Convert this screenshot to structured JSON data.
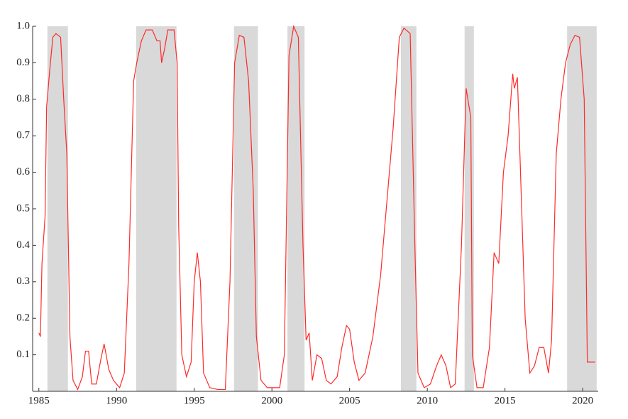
{
  "chart_data": {
    "type": "line",
    "x": [
      1985.0,
      1985.1,
      1985.2,
      1985.4,
      1985.5,
      1985.7,
      1985.9,
      1986.1,
      1986.4,
      1986.6,
      1986.8,
      1987.0,
      1987.2,
      1987.5,
      1987.8,
      1988.0,
      1988.2,
      1988.4,
      1988.7,
      1989.0,
      1989.2,
      1989.5,
      1989.8,
      1990.2,
      1990.5,
      1990.8,
      1991.1,
      1991.3,
      1991.6,
      1991.9,
      1992.3,
      1992.6,
      1992.8,
      1992.9,
      1993.1,
      1993.3,
      1993.7,
      1993.9,
      1994.0,
      1994.2,
      1994.5,
      1994.8,
      1995.0,
      1995.2,
      1995.4,
      1995.6,
      1996.0,
      1996.5,
      1997.0,
      1997.3,
      1997.6,
      1997.9,
      1998.2,
      1998.5,
      1998.8,
      1999.0,
      1999.3,
      1999.7,
      2000.1,
      2000.5,
      2000.8,
      2001.1,
      2001.4,
      2001.7,
      2002.0,
      2002.2,
      2002.4,
      2002.6,
      2002.9,
      2003.2,
      2003.5,
      2003.8,
      2004.2,
      2004.5,
      2004.8,
      2005.0,
      2005.3,
      2005.6,
      2006.0,
      2006.5,
      2007.0,
      2007.4,
      2007.8,
      2008.2,
      2008.5,
      2008.9,
      2009.2,
      2009.4,
      2009.8,
      2010.2,
      2010.6,
      2010.9,
      2011.2,
      2011.5,
      2011.8,
      2012.2,
      2012.5,
      2012.8,
      2012.9,
      2013.2,
      2013.6,
      2014.0,
      2014.3,
      2014.6,
      2014.9,
      2015.2,
      2015.5,
      2015.6,
      2015.8,
      2016.0,
      2016.3,
      2016.6,
      2016.9,
      2017.2,
      2017.5,
      2017.8,
      2018.0,
      2018.3,
      2018.6,
      2018.9,
      2019.2,
      2019.5,
      2019.8,
      2020.1,
      2020.3,
      2020.8
    ],
    "series": [
      {
        "color": "#ff2a2a",
        "values": [
          0.16,
          0.15,
          0.35,
          0.48,
          0.78,
          0.88,
          0.97,
          0.98,
          0.97,
          0.8,
          0.65,
          0.15,
          0.03,
          0.005,
          0.04,
          0.11,
          0.11,
          0.02,
          0.02,
          0.09,
          0.13,
          0.06,
          0.03,
          0.01,
          0.05,
          0.35,
          0.85,
          0.9,
          0.96,
          0.99,
          0.99,
          0.96,
          0.96,
          0.9,
          0.94,
          0.99,
          0.99,
          0.9,
          0.45,
          0.1,
          0.04,
          0.08,
          0.3,
          0.38,
          0.3,
          0.05,
          0.01,
          0.005,
          0.005,
          0.3,
          0.9,
          0.975,
          0.97,
          0.85,
          0.55,
          0.15,
          0.03,
          0.01,
          0.01,
          0.01,
          0.1,
          0.92,
          1.0,
          0.97,
          0.4,
          0.14,
          0.16,
          0.03,
          0.1,
          0.09,
          0.03,
          0.02,
          0.04,
          0.12,
          0.18,
          0.17,
          0.08,
          0.03,
          0.05,
          0.15,
          0.32,
          0.52,
          0.72,
          0.97,
          0.995,
          0.98,
          0.4,
          0.05,
          0.01,
          0.02,
          0.07,
          0.1,
          0.07,
          0.01,
          0.02,
          0.4,
          0.83,
          0.75,
          0.1,
          0.01,
          0.01,
          0.12,
          0.38,
          0.35,
          0.6,
          0.7,
          0.87,
          0.83,
          0.86,
          0.6,
          0.2,
          0.05,
          0.07,
          0.12,
          0.12,
          0.05,
          0.14,
          0.65,
          0.8,
          0.9,
          0.95,
          0.975,
          0.97,
          0.8,
          0.08,
          0.08
        ]
      }
    ],
    "shaded_regions": [
      [
        1985.55,
        1986.87
      ],
      [
        1991.26,
        1993.86
      ],
      [
        1997.56,
        1999.1
      ],
      [
        2001.0,
        2002.1
      ],
      [
        2008.3,
        2009.3
      ],
      [
        2012.4,
        2013.0
      ],
      [
        2019.0,
        2020.9
      ]
    ],
    "shade_color": "#d9d9d9",
    "xlim": [
      1984.6,
      2021.0
    ],
    "xticks": [
      1985,
      1990,
      1995,
      2000,
      2005,
      2010,
      2015,
      2020
    ],
    "ylim": [
      0,
      1
    ],
    "yticks": [
      0.1,
      0.2,
      0.3,
      0.4,
      0.5,
      0.6,
      0.7,
      0.8,
      0.9,
      {
        "value": 1,
        "label": "1.0"
      }
    ]
  }
}
